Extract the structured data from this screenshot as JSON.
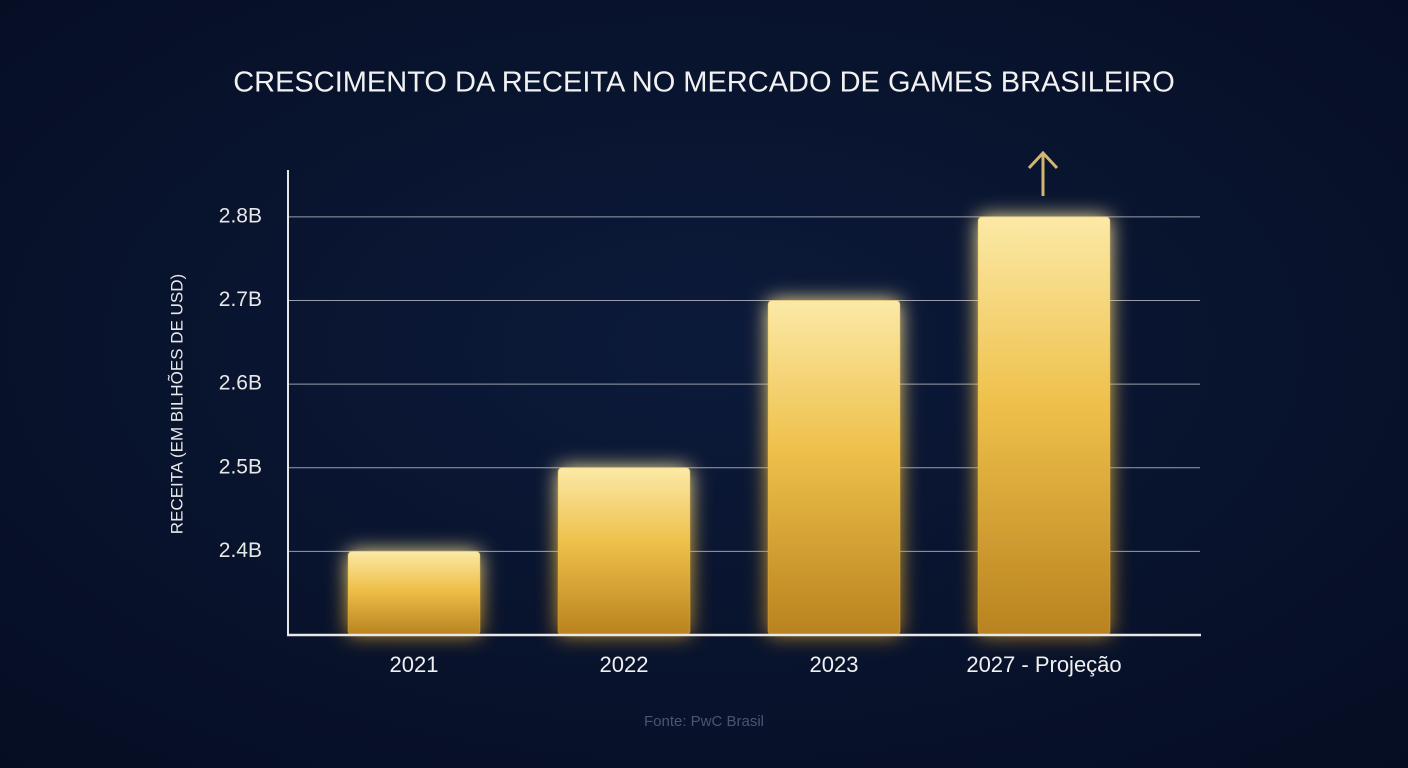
{
  "chart_data": {
    "type": "bar",
    "title": "CRESCIMENTO DA RECEITA NO MERCADO DE GAMES BRASILEIRO",
    "y_label": "RECEITA (EM BILHÕES DE USD)",
    "source": "Fonte: PwC Brasil",
    "categories": [
      "2021",
      "2022",
      "2023",
      "2027 - Projeção"
    ],
    "values": [
      2.4,
      2.5,
      2.7,
      2.8
    ],
    "color": "#e8b93a",
    "ylim": [
      2.3,
      2.85
    ],
    "yticks": [
      {
        "value": 2.4,
        "label": "2.4B"
      },
      {
        "value": 2.5,
        "label": "2.5B"
      },
      {
        "value": 2.6,
        "label": "2.6B"
      },
      {
        "value": 2.7,
        "label": "2.7B"
      },
      {
        "value": 2.8,
        "label": "2.8B"
      }
    ],
    "grid": true
  }
}
